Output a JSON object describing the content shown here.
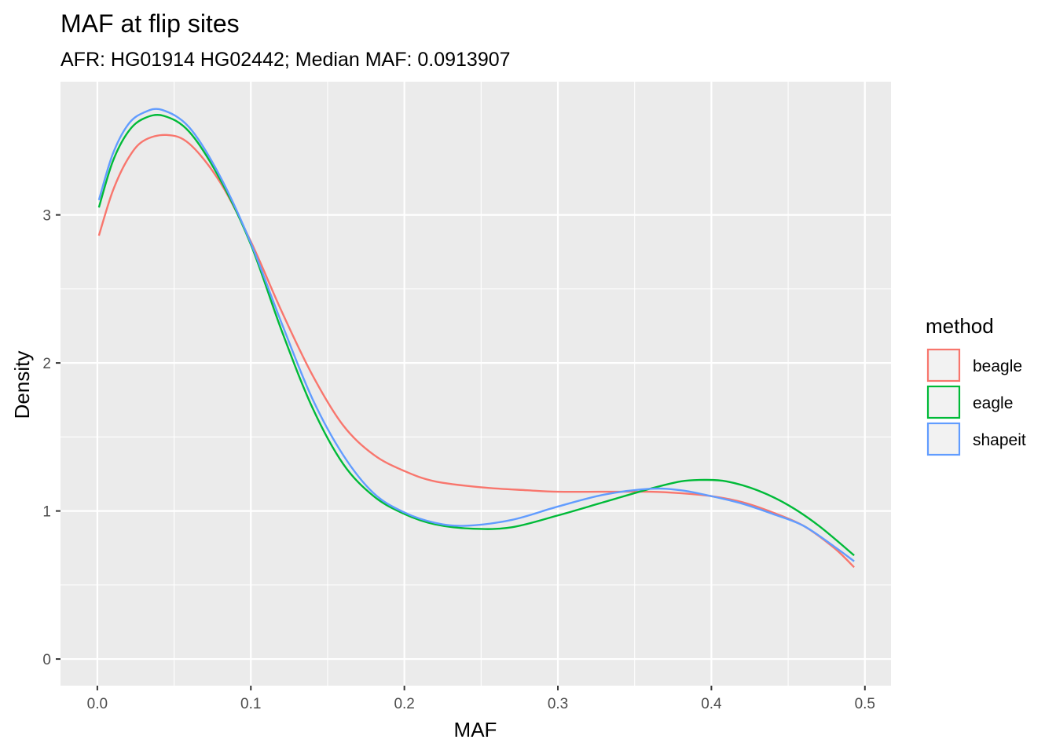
{
  "chart_data": {
    "type": "line",
    "title": "MAF at flip sites",
    "subtitle": "AFR: HG01914 HG02442; Median MAF: 0.0913907",
    "xlabel": "MAF",
    "ylabel": "Density",
    "xlim": [
      -0.024,
      0.517
    ],
    "ylim": [
      -0.18,
      3.9
    ],
    "x_ticks": [
      0.0,
      0.1,
      0.2,
      0.3,
      0.4,
      0.5
    ],
    "x_tick_labels": [
      "0.0",
      "0.1",
      "0.2",
      "0.3",
      "0.4",
      "0.5"
    ],
    "y_ticks": [
      0,
      1,
      2,
      3
    ],
    "y_tick_labels": [
      "0",
      "1",
      "2",
      "3"
    ],
    "grid": true,
    "legend": {
      "title": "method",
      "position": "right"
    },
    "colors": {
      "beagle": "#F8766D",
      "eagle": "#00BA38",
      "shapeit": "#619CFF"
    },
    "series": [
      {
        "name": "beagle",
        "color": "#F8766D",
        "x": [
          0.001,
          0.01,
          0.02,
          0.03,
          0.045,
          0.06,
          0.08,
          0.1,
          0.12,
          0.14,
          0.16,
          0.18,
          0.2,
          0.22,
          0.25,
          0.28,
          0.3,
          0.33,
          0.36,
          0.38,
          0.4,
          0.42,
          0.44,
          0.46,
          0.48,
          0.493
        ],
        "values": [
          2.86,
          3.16,
          3.38,
          3.5,
          3.54,
          3.48,
          3.22,
          2.82,
          2.35,
          1.92,
          1.58,
          1.38,
          1.27,
          1.2,
          1.16,
          1.14,
          1.13,
          1.13,
          1.13,
          1.12,
          1.1,
          1.06,
          0.99,
          0.9,
          0.75,
          0.62
        ]
      },
      {
        "name": "eagle",
        "color": "#00BA38",
        "x": [
          0.001,
          0.01,
          0.02,
          0.03,
          0.043,
          0.06,
          0.08,
          0.1,
          0.12,
          0.14,
          0.16,
          0.18,
          0.2,
          0.22,
          0.245,
          0.27,
          0.3,
          0.33,
          0.36,
          0.38,
          0.395,
          0.41,
          0.43,
          0.45,
          0.47,
          0.493
        ],
        "values": [
          3.05,
          3.36,
          3.56,
          3.65,
          3.67,
          3.56,
          3.24,
          2.8,
          2.22,
          1.7,
          1.32,
          1.1,
          0.98,
          0.91,
          0.88,
          0.89,
          0.97,
          1.06,
          1.15,
          1.2,
          1.21,
          1.2,
          1.14,
          1.04,
          0.9,
          0.7
        ]
      },
      {
        "name": "shapeit",
        "color": "#619CFF",
        "x": [
          0.001,
          0.01,
          0.02,
          0.03,
          0.042,
          0.06,
          0.08,
          0.1,
          0.12,
          0.14,
          0.16,
          0.18,
          0.2,
          0.22,
          0.24,
          0.27,
          0.3,
          0.33,
          0.36,
          0.38,
          0.4,
          0.42,
          0.44,
          0.46,
          0.48,
          0.493
        ],
        "values": [
          3.1,
          3.41,
          3.61,
          3.69,
          3.71,
          3.59,
          3.26,
          2.81,
          2.27,
          1.76,
          1.38,
          1.12,
          0.99,
          0.92,
          0.9,
          0.94,
          1.03,
          1.11,
          1.15,
          1.14,
          1.1,
          1.05,
          0.98,
          0.9,
          0.76,
          0.66
        ]
      }
    ]
  }
}
